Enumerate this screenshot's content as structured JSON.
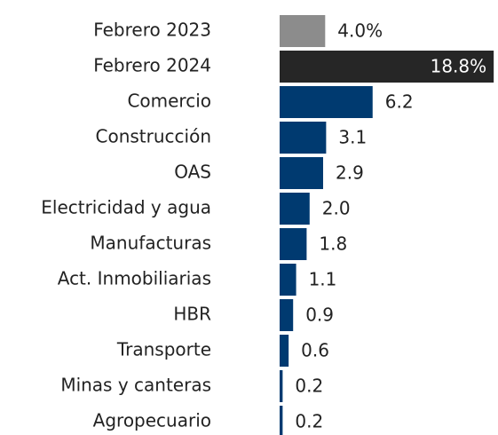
{
  "chart_data": [
    {
      "type": "bar",
      "orientation": "horizontal",
      "categories": [
        "Febrero 2023",
        "Febrero 2024"
      ],
      "values": [
        4.0,
        18.8
      ],
      "value_labels": [
        "4.0%",
        "18.8%"
      ],
      "colors": [
        "#8c8c8c",
        "#262626"
      ],
      "xlim": [
        0,
        19.1
      ]
    },
    {
      "type": "bar",
      "orientation": "horizontal",
      "categories": [
        "Comercio",
        "Construcción",
        "OAS",
        "Electricidad y agua",
        "Manufacturas",
        "Act. Inmobiliarias",
        "HBR",
        "Transporte",
        "Minas y canteras",
        "Agropecuario"
      ],
      "values": [
        6.2,
        3.1,
        2.9,
        2.0,
        1.8,
        1.1,
        0.9,
        0.6,
        0.2,
        0.2
      ],
      "value_labels": [
        "6.2",
        "3.1",
        "2.9",
        "2.0",
        "1.8",
        "1.1",
        "0.9",
        "0.6",
        "0.2",
        "0.2"
      ],
      "color": "#003a70",
      "xlim": [
        0,
        14.5
      ]
    }
  ]
}
